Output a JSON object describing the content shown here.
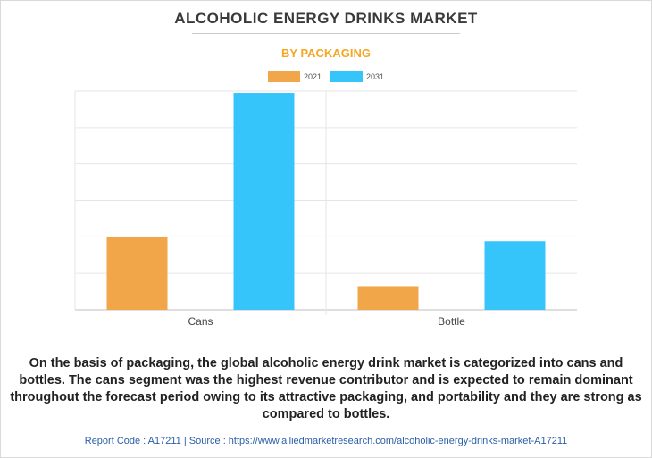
{
  "header": {
    "title": "ALCOHOLIC ENERGY DRINKS MARKET",
    "subtitle": "BY PACKAGING"
  },
  "colors": {
    "series_2021": "#f2a64a",
    "series_2031": "#35c5fb",
    "subtitle": "#f5a623",
    "footer": "#2a5ea8"
  },
  "chart_data": {
    "type": "bar",
    "categories": [
      "Cans",
      "Bottle"
    ],
    "series": [
      {
        "name": "2021",
        "values": [
          2.0,
          0.65
        ]
      },
      {
        "name": "2031",
        "values": [
          5.95,
          1.88
        ]
      }
    ],
    "title": "",
    "xlabel": "",
    "ylabel": "",
    "ylim": [
      0,
      6
    ],
    "grid": true,
    "legend_position": "top-center"
  },
  "description": "On the basis of packaging, the global alcoholic energy drink market is categorized into cans and bottles. The cans segment was the highest revenue contributor and is expected to remain dominant throughout the forecast period owing to its attractive packaging, and portability and they are strong as compared to bottles.",
  "footer": {
    "report_code": "Report Code : A17211",
    "separator": "|",
    "source": "Source : https://www.alliedmarketresearch.com/alcoholic-energy-drinks-market-A17211"
  }
}
